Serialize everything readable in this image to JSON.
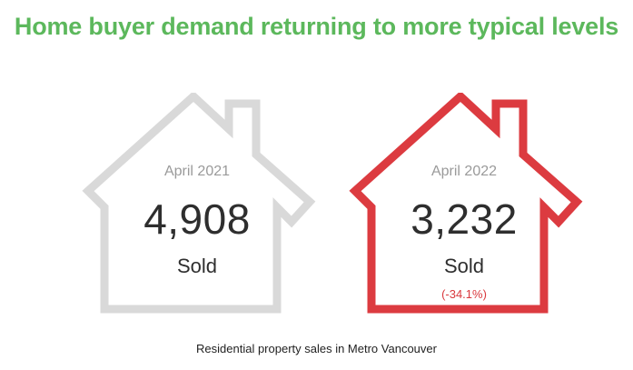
{
  "title": "Home buyer demand returning to more typical levels",
  "caption": "Residential property sales in Metro Vancouver",
  "colors": {
    "title": "#5cb85c",
    "house_2021": "#d9d9d9",
    "house_2022": "#dc3b40",
    "change": "#d9383d"
  },
  "houses": [
    {
      "period": "April 2021",
      "count": "4,908",
      "label": "Sold",
      "change": ""
    },
    {
      "period": "April 2022",
      "count": "3,232",
      "label": "Sold",
      "change": "(-34.1%)"
    }
  ]
}
